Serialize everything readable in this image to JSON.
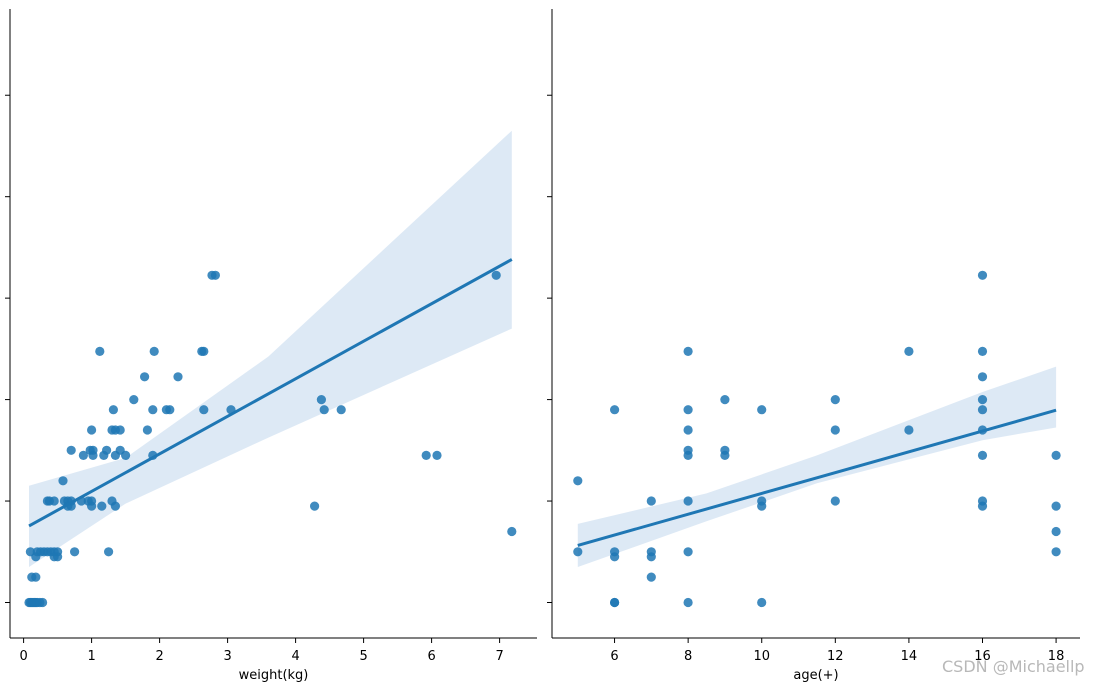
{
  "watermark": "CSDN @Michaellp",
  "colors": {
    "points": "#1f77b4",
    "line": "#1f77b4",
    "band": "#c6dbef",
    "axis": "#000000"
  },
  "chart_data": [
    {
      "type": "scatter",
      "title": "",
      "xlabel": "weight(kg)",
      "ylabel": "",
      "xlim": [
        -0.2,
        7.55
      ],
      "ylim": [
        0.3,
        12.7
      ],
      "xticks": [
        0,
        1,
        2,
        3,
        4,
        5,
        6,
        7
      ],
      "yticks": [
        1,
        3,
        5,
        7,
        9,
        11
      ],
      "ytick_labels_visible": false,
      "points": [
        [
          0.08,
          1
        ],
        [
          0.1,
          1
        ],
        [
          0.12,
          1
        ],
        [
          0.14,
          1
        ],
        [
          0.16,
          1
        ],
        [
          0.18,
          1
        ],
        [
          0.2,
          1
        ],
        [
          0.24,
          1
        ],
        [
          0.28,
          1
        ],
        [
          0.12,
          1.5
        ],
        [
          0.18,
          1.5
        ],
        [
          0.1,
          2
        ],
        [
          0.2,
          2
        ],
        [
          0.25,
          2
        ],
        [
          0.3,
          2
        ],
        [
          0.35,
          2
        ],
        [
          0.4,
          2
        ],
        [
          0.45,
          2
        ],
        [
          0.5,
          2
        ],
        [
          0.18,
          1.9
        ],
        [
          0.45,
          1.9
        ],
        [
          0.5,
          1.9
        ],
        [
          0.75,
          2
        ],
        [
          1.25,
          2
        ],
        [
          0.35,
          3
        ],
        [
          0.38,
          3
        ],
        [
          0.45,
          3
        ],
        [
          0.6,
          3
        ],
        [
          0.65,
          3
        ],
        [
          0.7,
          3
        ],
        [
          0.85,
          3
        ],
        [
          0.95,
          3
        ],
        [
          1.0,
          3
        ],
        [
          1.3,
          3
        ],
        [
          0.65,
          2.9
        ],
        [
          0.7,
          2.9
        ],
        [
          1.0,
          2.9
        ],
        [
          1.15,
          2.9
        ],
        [
          1.35,
          2.9
        ],
        [
          0.58,
          3.4
        ],
        [
          0.7,
          4
        ],
        [
          0.88,
          3.9
        ],
        [
          0.98,
          4
        ],
        [
          1.02,
          3.9
        ],
        [
          1.02,
          4
        ],
        [
          1.18,
          3.9
        ],
        [
          1.22,
          4
        ],
        [
          1.35,
          3.9
        ],
        [
          1.42,
          4
        ],
        [
          1.5,
          3.9
        ],
        [
          1.9,
          3.9
        ],
        [
          1.0,
          4.4
        ],
        [
          1.3,
          4.4
        ],
        [
          1.35,
          4.4
        ],
        [
          1.42,
          4.4
        ],
        [
          1.82,
          4.4
        ],
        [
          1.32,
          4.8
        ],
        [
          1.9,
          4.8
        ],
        [
          2.1,
          4.8
        ],
        [
          2.15,
          4.8
        ],
        [
          2.65,
          4.8
        ],
        [
          3.05,
          4.8
        ],
        [
          1.62,
          5
        ],
        [
          1.78,
          5.45
        ],
        [
          2.27,
          5.45
        ],
        [
          1.12,
          5.95
        ],
        [
          1.92,
          5.95
        ],
        [
          2.62,
          5.95
        ],
        [
          2.65,
          5.95
        ],
        [
          2.77,
          7.45
        ],
        [
          2.82,
          7.45
        ],
        [
          6.95,
          7.45
        ],
        [
          4.28,
          2.9
        ],
        [
          4.38,
          5
        ],
        [
          4.42,
          4.8
        ],
        [
          4.67,
          4.8
        ],
        [
          5.92,
          3.9
        ],
        [
          6.08,
          3.9
        ],
        [
          7.18,
          2.4
        ]
      ],
      "regression": {
        "intercept": 2.45,
        "slope": 0.74,
        "x_range": [
          0.08,
          7.18
        ]
      },
      "ci_band": {
        "x": [
          0.08,
          1.5,
          3.6,
          7.18
        ],
        "lower": [
          1.7,
          2.95,
          4.25,
          6.4
        ],
        "upper": [
          3.3,
          3.85,
          5.85,
          10.3
        ]
      }
    },
    {
      "type": "scatter",
      "title": "",
      "xlabel": "age(+)",
      "ylabel": "",
      "xlim": [
        4.3,
        18.65
      ],
      "ylim": [
        0.3,
        12.7
      ],
      "xticks": [
        6,
        8,
        10,
        12,
        14,
        16,
        18
      ],
      "yticks": [
        1,
        3,
        5,
        7,
        9,
        11
      ],
      "ytick_labels_visible": false,
      "points": [
        [
          5,
          2
        ],
        [
          5,
          3.4
        ],
        [
          6,
          1
        ],
        [
          6,
          1
        ],
        [
          6,
          1.9
        ],
        [
          6,
          2
        ],
        [
          6,
          4.8
        ],
        [
          7,
          1.5
        ],
        [
          7,
          1.9
        ],
        [
          7,
          2
        ],
        [
          7,
          3
        ],
        [
          8,
          1
        ],
        [
          8,
          2
        ],
        [
          8,
          3
        ],
        [
          8,
          3.9
        ],
        [
          8,
          4
        ],
        [
          8,
          4.4
        ],
        [
          8,
          4.8
        ],
        [
          8,
          5.95
        ],
        [
          9,
          3.9
        ],
        [
          9,
          4
        ],
        [
          9,
          5
        ],
        [
          10,
          1
        ],
        [
          10,
          2.9
        ],
        [
          10,
          3
        ],
        [
          10,
          4.8
        ],
        [
          12,
          3
        ],
        [
          12,
          4.4
        ],
        [
          12,
          5
        ],
        [
          14,
          4.4
        ],
        [
          14,
          5.95
        ],
        [
          16,
          2.9
        ],
        [
          16,
          3
        ],
        [
          16,
          3.9
        ],
        [
          16,
          4.4
        ],
        [
          16,
          4.8
        ],
        [
          16,
          5
        ],
        [
          16,
          5.45
        ],
        [
          16,
          5.95
        ],
        [
          16,
          7.45
        ],
        [
          18,
          2
        ],
        [
          18,
          2.4
        ],
        [
          18,
          2.9
        ],
        [
          18,
          3.9
        ]
      ],
      "regression": {
        "intercept": 1.1,
        "slope": 0.205,
        "x_range": [
          5,
          18
        ]
      },
      "ci_band": {
        "x": [
          5,
          8.5,
          11.5,
          16,
          18
        ],
        "lower": [
          1.7,
          2.6,
          3.35,
          4.2,
          4.45
        ],
        "upper": [
          2.55,
          3.15,
          3.9,
          5.15,
          5.65
        ]
      }
    }
  ]
}
